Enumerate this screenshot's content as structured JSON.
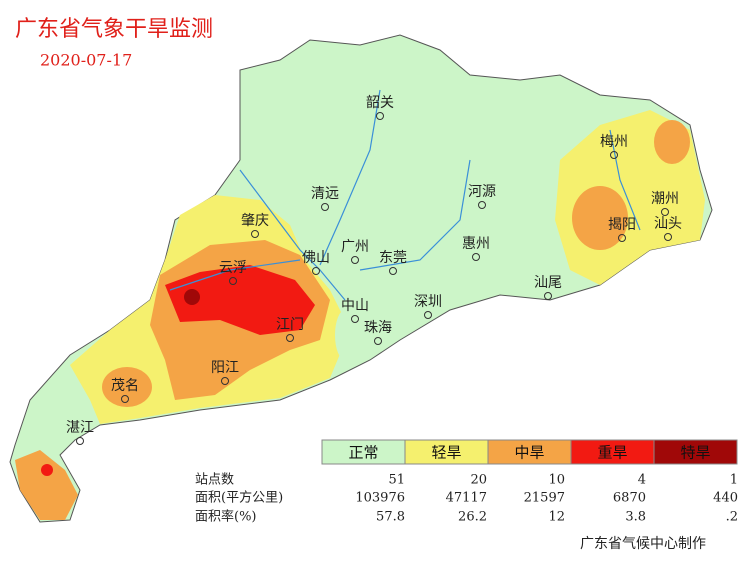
{
  "header": {
    "title": "广东省气象干旱监测",
    "date": "2020-07-17"
  },
  "cities": [
    "韶关",
    "梅州",
    "清远",
    "河源",
    "潮州",
    "肇庆",
    "广州",
    "揭阳",
    "汕头",
    "惠州",
    "东莞",
    "佛山",
    "云浮",
    "汕尾",
    "中山",
    "深圳",
    "江门",
    "珠海",
    "阳江",
    "茂名",
    "湛江"
  ],
  "legend": [
    {
      "label": "正常",
      "color": "#ccf5c8"
    },
    {
      "label": "轻旱",
      "color": "#f5f06e"
    },
    {
      "label": "中旱",
      "color": "#f4a446"
    },
    {
      "label": "重旱",
      "color": "#f21a12"
    },
    {
      "label": "特旱",
      "color": "#a00808"
    }
  ],
  "table": {
    "rows": [
      {
        "label": "站点数",
        "values": [
          51,
          20,
          10,
          4,
          1
        ]
      },
      {
        "label": "面积(平方公里)",
        "values": [
          103976,
          47117,
          21597,
          6870,
          440
        ]
      },
      {
        "label": "面积率(%)",
        "values": [
          57.8,
          26.2,
          12,
          3.8,
          0.2
        ],
        "value_labels": [
          "57.8",
          "26.2",
          "12",
          "3.8",
          ".2"
        ]
      }
    ]
  },
  "footer": {
    "credit": "广东省气候中心制作"
  }
}
